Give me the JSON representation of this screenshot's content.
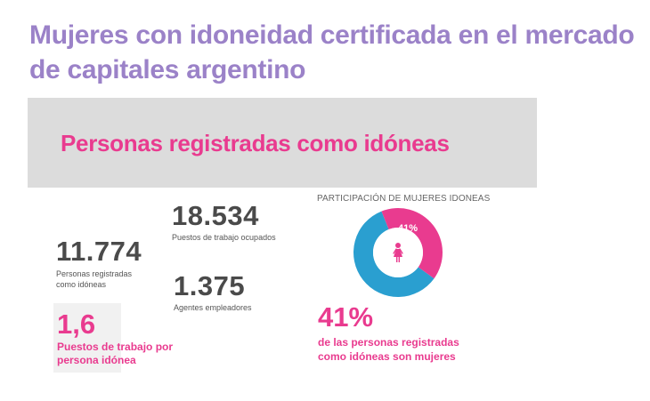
{
  "title": "Mujeres con idoneidad certificada en el mercado de capitales argentino",
  "banner": {
    "title": "Personas registradas como idóneas"
  },
  "stats": {
    "registered": {
      "value": "11.774",
      "label_line1": "Personas registradas",
      "label_line2": "como idóneas"
    },
    "jobs": {
      "value": "18.534",
      "label": "Puestos de trabajo ocupados"
    },
    "agents": {
      "value": "1.375",
      "label": "Agentes empleadores"
    },
    "ratio": {
      "value": "1,6",
      "label_line1": "Puestos de trabajo por",
      "label_line2": "persona idónea"
    }
  },
  "participation": {
    "heading": "PARTICIPACIÓN DE MUJERES IDONEAS",
    "donut_label": "41%",
    "women_fraction": 0.41,
    "icon": "woman-icon",
    "big_value": "41%",
    "desc_line1": "de las personas registradas",
    "desc_line2": "como idóneas son mujeres",
    "colors": {
      "women": "#e93b8f",
      "rest": "#2a9fd0"
    }
  }
}
